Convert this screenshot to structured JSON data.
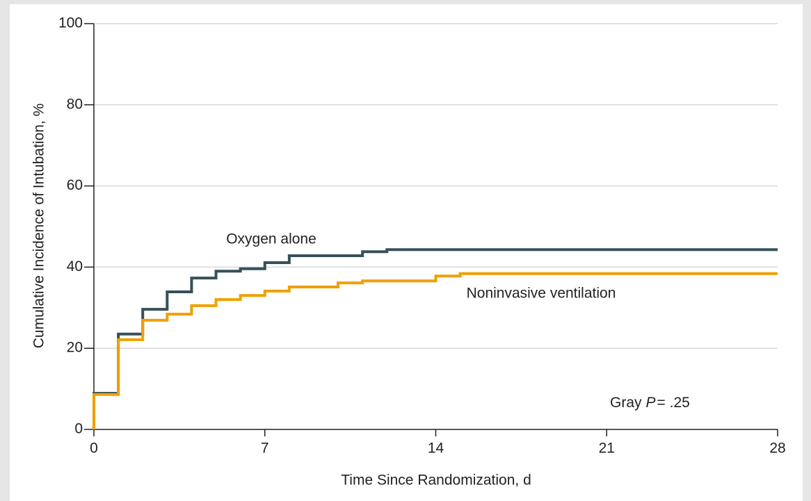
{
  "chart_data": {
    "type": "line",
    "step": "post",
    "x_label": "Time Since Randomization, d",
    "y_label": "Cumulative Incidence of Intubation, %",
    "xlim": [
      0,
      28
    ],
    "xticks": [
      0,
      7,
      14,
      21,
      28
    ],
    "ylim": [
      0,
      100
    ],
    "yticks": [
      0,
      20,
      40,
      60,
      80,
      100
    ],
    "grid": true,
    "series": [
      {
        "name": "Oxygen alone",
        "color": "#37505a",
        "x": [
          0,
          0,
          1,
          2,
          3,
          4,
          5,
          6,
          7,
          8,
          11,
          12,
          28
        ],
        "values": [
          0,
          8.9,
          23.5,
          29.6,
          33.9,
          37.3,
          39.0,
          39.6,
          41.1,
          42.8,
          43.8,
          44.3,
          44.3
        ]
      },
      {
        "name": "Noninvasive ventilation",
        "color": "#f0a000",
        "x": [
          0,
          0,
          1,
          2,
          3,
          4,
          5,
          6,
          7,
          8,
          10,
          11,
          14,
          15,
          28
        ],
        "values": [
          0,
          8.6,
          22.1,
          26.9,
          28.4,
          30.5,
          32.0,
          33.0,
          34.1,
          35.1,
          36.1,
          36.6,
          37.8,
          38.4,
          38.4
        ]
      }
    ],
    "p_value": {
      "test": "Gray",
      "symbol": "P",
      "text": "= .25"
    }
  }
}
